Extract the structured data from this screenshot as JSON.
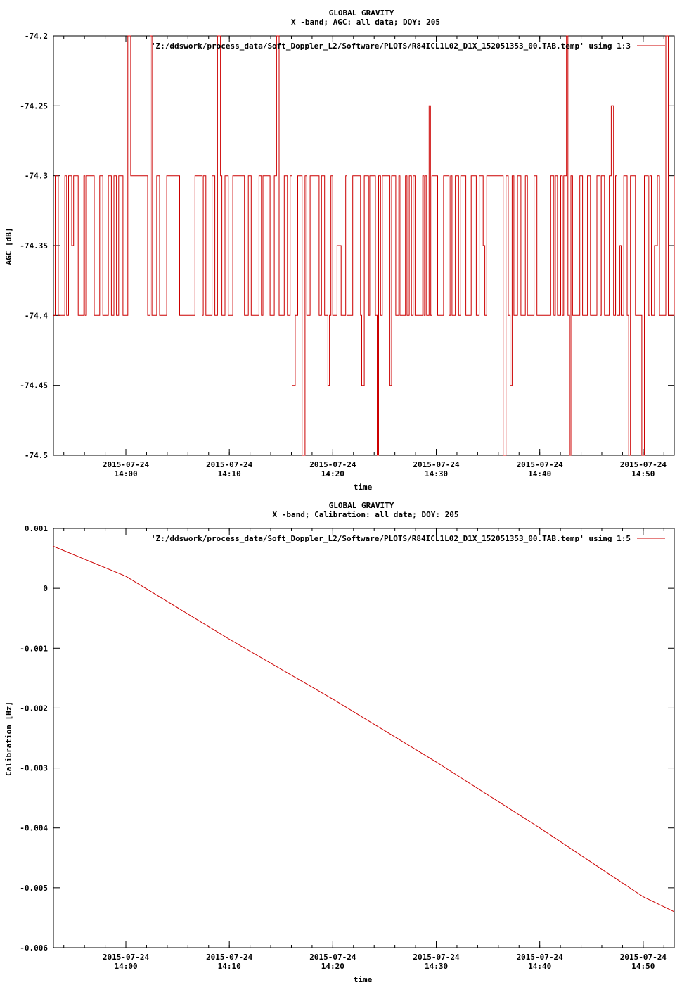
{
  "chart_data": [
    {
      "type": "line",
      "title": "GLOBAL GRAVITY",
      "subtitle": "X -band; AGC: all data; DOY: 205",
      "xlabel": "time",
      "ylabel": "AGC [dB]",
      "legend": "'Z:/ddswork/process_data/Soft_Doppler_L2/Software/PLOTS/R84ICL1L02_D1X_152051353_00.TAB.temp' using 1:3",
      "legend_position": "top-right",
      "series_color": "#cc0000",
      "xlim": [
        "2015-07-24 13:53:00",
        "2015-07-24 14:53:00"
      ],
      "ylim": [
        -74.5,
        -74.2
      ],
      "yticks": [
        {
          "value": -74.2,
          "label": "-74.2"
        },
        {
          "value": -74.25,
          "label": "-74.25"
        },
        {
          "value": -74.3,
          "label": "-74.3"
        },
        {
          "value": -74.35,
          "label": "-74.35"
        },
        {
          "value": -74.4,
          "label": "-74.4"
        },
        {
          "value": -74.45,
          "label": "-74.45"
        },
        {
          "value": -74.5,
          "label": "-74.5"
        }
      ],
      "xticks": [
        {
          "value": "2015-07-24 14:00:00",
          "date": "2015-07-24",
          "time": "14:00"
        },
        {
          "value": "2015-07-24 14:10:00",
          "date": "2015-07-24",
          "time": "14:10"
        },
        {
          "value": "2015-07-24 14:20:00",
          "date": "2015-07-24",
          "time": "14:20"
        },
        {
          "value": "2015-07-24 14:30:00",
          "date": "2015-07-24",
          "time": "14:30"
        },
        {
          "value": "2015-07-24 14:40:00",
          "date": "2015-07-24",
          "time": "14:40"
        },
        {
          "value": "2015-07-24 14:50:00",
          "date": "2015-07-24",
          "time": "14:50"
        }
      ],
      "levels": [
        -74.2,
        -74.25,
        -74.3,
        -74.35,
        -74.4,
        -74.45,
        -74.5
      ],
      "series": [
        {
          "x": [
            "2015-07-24 13:53:00",
            "2015-07-24 14:53:00"
          ],
          "y": [
            -74.4,
            -74.4
          ]
        }
      ]
    },
    {
      "type": "line",
      "title": "GLOBAL GRAVITY",
      "subtitle": "X -band; Calibration: all data; DOY: 205",
      "xlabel": "time",
      "ylabel": "Calibration [Hz]",
      "legend": "'Z:/ddswork/process_data/Soft_Doppler_L2/Software/PLOTS/R84ICL1L02_D1X_152051353_00.TAB.temp' using 1:5",
      "legend_position": "top-right",
      "series_color": "#cc0000",
      "xlim": [
        "2015-07-24 13:53:00",
        "2015-07-24 14:53:00"
      ],
      "ylim": [
        -0.006,
        0.001
      ],
      "yticks": [
        {
          "value": 0.001,
          "label": "0.001"
        },
        {
          "value": 0,
          "label": "0"
        },
        {
          "value": -0.001,
          "label": "-0.001"
        },
        {
          "value": -0.002,
          "label": "-0.002"
        },
        {
          "value": -0.003,
          "label": "-0.003"
        },
        {
          "value": -0.004,
          "label": "-0.004"
        },
        {
          "value": -0.005,
          "label": "-0.005"
        },
        {
          "value": -0.006,
          "label": "-0.006"
        }
      ],
      "xticks": [
        {
          "value": "2015-07-24 14:00:00",
          "date": "2015-07-24",
          "time": "14:00"
        },
        {
          "value": "2015-07-24 14:10:00",
          "date": "2015-07-24",
          "time": "14:10"
        },
        {
          "value": "2015-07-24 14:20:00",
          "date": "2015-07-24",
          "time": "14:20"
        },
        {
          "value": "2015-07-24 14:30:00",
          "date": "2015-07-24",
          "time": "14:30"
        },
        {
          "value": "2015-07-24 14:40:00",
          "date": "2015-07-24",
          "time": "14:40"
        },
        {
          "value": "2015-07-24 14:50:00",
          "date": "2015-07-24",
          "time": "14:50"
        }
      ],
      "series": [
        {
          "x": [
            "2015-07-24 13:53:00",
            "2015-07-24 14:00:00",
            "2015-07-24 14:10:00",
            "2015-07-24 14:20:00",
            "2015-07-24 14:30:00",
            "2015-07-24 14:40:00",
            "2015-07-24 14:50:00",
            "2015-07-24 14:53:00"
          ],
          "y": [
            0.0007,
            0.0002,
            -0.00085,
            -0.00185,
            -0.0029,
            -0.004,
            -0.00515,
            -0.0054
          ]
        }
      ]
    }
  ]
}
